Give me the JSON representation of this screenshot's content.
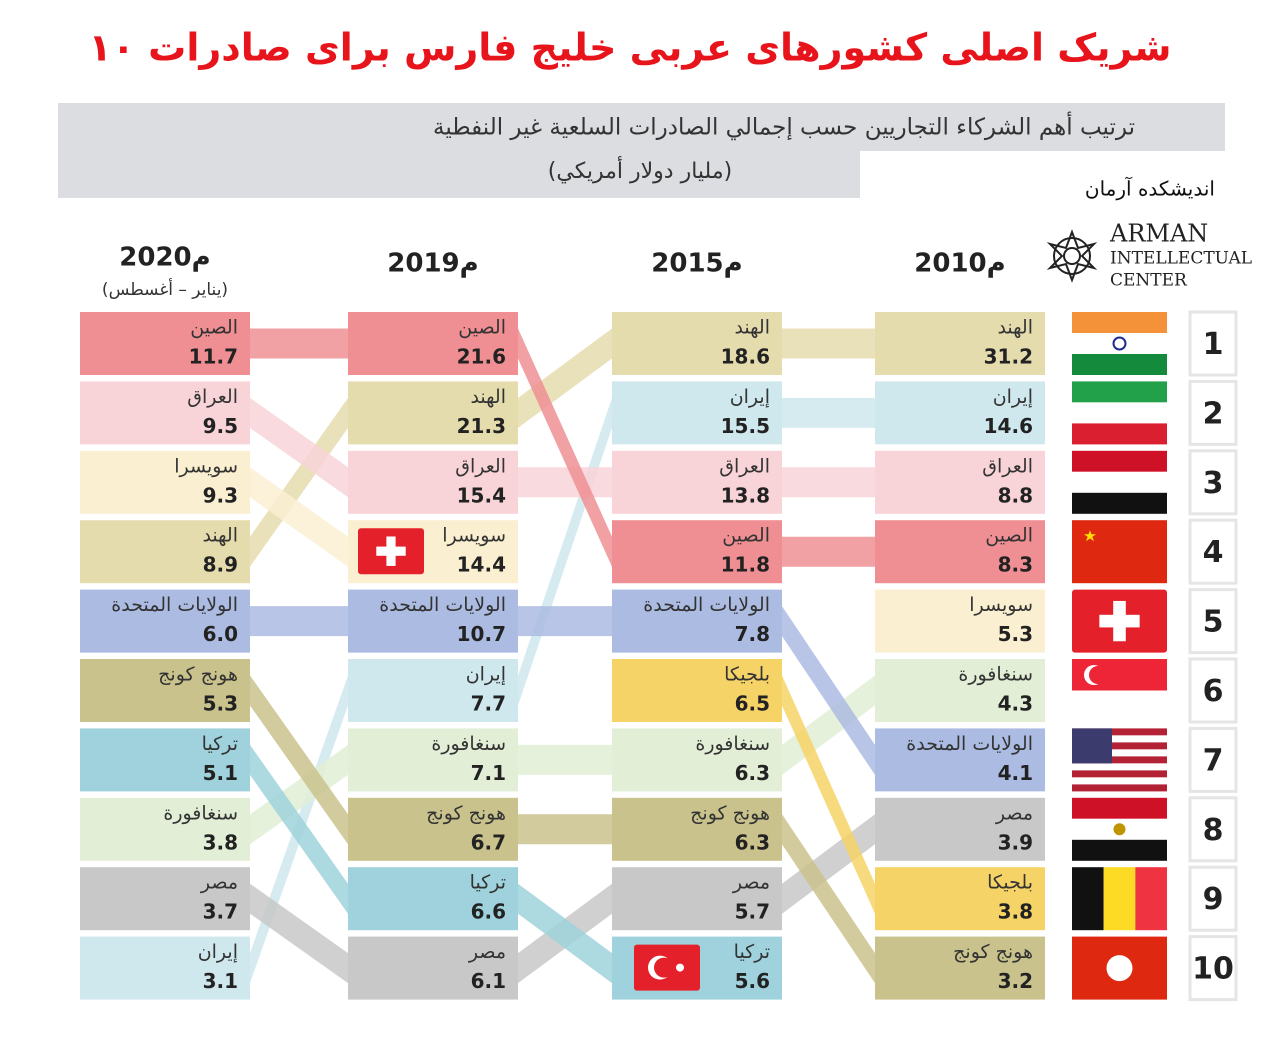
{
  "title": "۱۰ شریک اصلی کشورهای عربی خلیج فارس برای صادرات",
  "subtitle": {
    "line1": "ترتيب أهم الشركاء التجاريين حسب إجمالي الصادرات السلعية غير النفطية",
    "line2": "(مليار دولار أمريكي)"
  },
  "logo": {
    "persian": "اندیشکده آرمان",
    "line1": "ARMAN",
    "line2": "INTELLECTUAL",
    "line3": "CENTER"
  },
  "ranks": [
    "1",
    "2",
    "3",
    "4",
    "5",
    "6",
    "7",
    "8",
    "9",
    "10"
  ],
  "columns": [
    {
      "year": "2010م",
      "entries": [
        {
          "name": "الهند",
          "value": "31.2"
        },
        {
          "name": "إيران",
          "value": "14.6"
        },
        {
          "name": "العراق",
          "value": "8.8"
        },
        {
          "name": "الصين",
          "value": "8.3"
        },
        {
          "name": "سويسرا",
          "value": "5.3"
        },
        {
          "name": "سنغافورة",
          "value": "4.3"
        },
        {
          "name": "الولايات المتحدة",
          "value": "4.1"
        },
        {
          "name": "مصر",
          "value": "3.9"
        },
        {
          "name": "بلجيكا",
          "value": "3.8"
        },
        {
          "name": "هونج كونج",
          "value": "3.2"
        }
      ]
    },
    {
      "year": "2015م",
      "entries": [
        {
          "name": "الهند",
          "value": "18.6"
        },
        {
          "name": "إيران",
          "value": "15.5"
        },
        {
          "name": "العراق",
          "value": "13.8"
        },
        {
          "name": "الصين",
          "value": "11.8"
        },
        {
          "name": "الولايات المتحدة",
          "value": "7.8"
        },
        {
          "name": "بلجيكا",
          "value": "6.5"
        },
        {
          "name": "سنغافورة",
          "value": "6.3"
        },
        {
          "name": "هونج كونج",
          "value": "6.3"
        },
        {
          "name": "مصر",
          "value": "5.7"
        },
        {
          "name": "تركيا",
          "value": "5.6"
        }
      ]
    },
    {
      "year": "2019م",
      "entries": [
        {
          "name": "الصين",
          "value": "21.6"
        },
        {
          "name": "الهند",
          "value": "21.3"
        },
        {
          "name": "العراق",
          "value": "15.4"
        },
        {
          "name": "سويسرا",
          "value": "14.4"
        },
        {
          "name": "الولايات المتحدة",
          "value": "10.7"
        },
        {
          "name": "إيران",
          "value": "7.7"
        },
        {
          "name": "سنغافورة",
          "value": "7.1"
        },
        {
          "name": "هونج كونج",
          "value": "6.7"
        },
        {
          "name": "تركيا",
          "value": "6.6"
        },
        {
          "name": "مصر",
          "value": "6.1"
        }
      ]
    },
    {
      "year": "2020م",
      "note": "(يناير – أغسطس)",
      "entries": [
        {
          "name": "الصين",
          "value": "11.7"
        },
        {
          "name": "العراق",
          "value": "9.5"
        },
        {
          "name": "سويسرا",
          "value": "9.3"
        },
        {
          "name": "الهند",
          "value": "8.9"
        },
        {
          "name": "الولايات المتحدة",
          "value": "6.0"
        },
        {
          "name": "هونج كونج",
          "value": "5.3"
        },
        {
          "name": "تركيا",
          "value": "5.1"
        },
        {
          "name": "سنغافورة",
          "value": "3.8"
        },
        {
          "name": "مصر",
          "value": "3.7"
        },
        {
          "name": "إيران",
          "value": "3.1"
        }
      ]
    }
  ]
}
